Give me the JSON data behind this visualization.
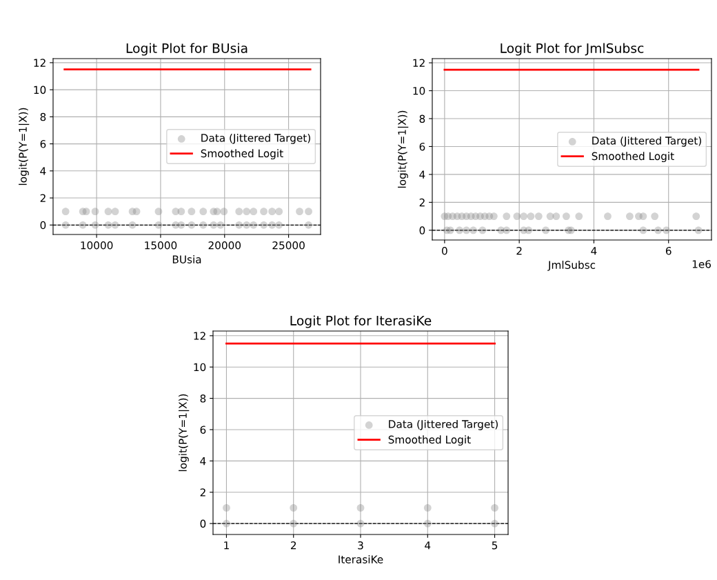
{
  "chart_data": [
    {
      "type": "scatter",
      "title": "Logit Plot for BUsia",
      "xlabel": "BUsia",
      "ylabel": "logit(P(Y=1|X))",
      "xlim": [
        6600,
        27500
      ],
      "xticks": [
        10000,
        15000,
        20000,
        25000
      ],
      "ylim": [
        -0.7,
        12.3
      ],
      "yticks": [
        0,
        2,
        4,
        6,
        8,
        10,
        12
      ],
      "grid": true,
      "legend": "center right",
      "series": [
        {
          "name": "Data (Jittered Target)",
          "marker": "circle",
          "color": "#808080",
          "x": [
            7580,
            8925,
            9190,
            9890,
            10910,
            11450,
            12800,
            13120,
            14840,
            16180,
            16610,
            17420,
            18330,
            19140,
            19410,
            19950,
            21130,
            21720,
            22260,
            23060,
            23710,
            24250,
            25860,
            26560,
            7580,
            8925,
            9890,
            10910,
            11450,
            12800,
            14840,
            16180,
            16610,
            17420,
            18330,
            19140,
            19680,
            21130,
            21720,
            22260,
            23060,
            23710,
            24250,
            26560
          ],
          "values": [
            1,
            1,
            1,
            1,
            1,
            1,
            1,
            1,
            1,
            1,
            1,
            1,
            1,
            1,
            1,
            1,
            1,
            1,
            1,
            1,
            1,
            1,
            1,
            1,
            0,
            0,
            0,
            0,
            0,
            0,
            0,
            0,
            0,
            0,
            0,
            0,
            0,
            0,
            0,
            0,
            0,
            0,
            0,
            0
          ]
        },
        {
          "name": "Smoothed Logit",
          "type": "line",
          "color": "#ff0000",
          "x": [
            7500,
            26700
          ],
          "values": [
            11.5,
            11.5
          ]
        }
      ],
      "ref_lines": [
        {
          "axis": "y",
          "value": 0,
          "color": "#000000",
          "line_style": "dashed"
        }
      ]
    },
    {
      "type": "scatter",
      "title": "Logit Plot for JmlSubsc",
      "xlabel": "JmlSubsc",
      "ylabel": "logit(P(Y=1|X))",
      "xlim": [
        -0.33,
        7.15
      ],
      "xticks": [
        0,
        2,
        4,
        6
      ],
      "ylim": [
        -0.7,
        12.3
      ],
      "yticks": [
        0,
        2,
        4,
        6,
        8,
        10,
        12
      ],
      "grid": true,
      "legend": "center right",
      "annotations": [
        "1e6"
      ],
      "series": [
        {
          "name": "Data (Jittered Target)",
          "marker": "circle",
          "color": "#808080",
          "x": [
            0,
            0.092,
            0.215,
            0.338,
            0.462,
            0.585,
            0.708,
            0.831,
            0.954,
            1.077,
            1.2,
            1.32,
            1.66,
            1.94,
            2.12,
            2.31,
            2.52,
            2.83,
            2.99,
            3.26,
            3.6,
            4.37,
            4.96,
            5.2,
            5.32,
            5.63,
            6.74,
            0.062,
            0.154,
            0.4,
            0.585,
            0.769,
            1.016,
            1.51,
            1.66,
            2.12,
            2.25,
            2.71,
            3.32,
            3.39,
            5.32,
            5.72,
            5.94,
            6.8
          ],
          "values": [
            1,
            1,
            1,
            1,
            1,
            1,
            1,
            1,
            1,
            1,
            1,
            1,
            1,
            1,
            1,
            1,
            1,
            1,
            1,
            1,
            1,
            1,
            1,
            1,
            1,
            1,
            1,
            0,
            0,
            0,
            0,
            0,
            0,
            0,
            0,
            0,
            0,
            0,
            0,
            0,
            0,
            0,
            0,
            0
          ]
        },
        {
          "name": "Smoothed Logit",
          "type": "line",
          "color": "#ff0000",
          "x": [
            0,
            6.8
          ],
          "values": [
            11.5,
            11.5
          ]
        }
      ],
      "ref_lines": [
        {
          "axis": "y",
          "value": 0,
          "color": "#000000",
          "line_style": "dashed"
        }
      ]
    },
    {
      "type": "scatter",
      "title": "Logit Plot for IterasiKe",
      "xlabel": "IterasiKe",
      "ylabel": "logit(P(Y=1|X))",
      "xlim": [
        0.8,
        5.2
      ],
      "xticks": [
        1,
        2,
        3,
        4,
        5
      ],
      "ylim": [
        -0.7,
        12.3
      ],
      "yticks": [
        0,
        2,
        4,
        6,
        8,
        10,
        12
      ],
      "grid": true,
      "legend": "center right",
      "series": [
        {
          "name": "Data (Jittered Target)",
          "marker": "circle",
          "color": "#808080",
          "x": [
            1,
            2,
            3,
            4,
            5,
            1,
            2,
            3,
            4,
            5
          ],
          "values": [
            1,
            1,
            1,
            1,
            1,
            0,
            0,
            0,
            0,
            0
          ]
        },
        {
          "name": "Smoothed Logit",
          "type": "line",
          "color": "#ff0000",
          "x": [
            1,
            5
          ],
          "values": [
            11.5,
            11.5
          ]
        }
      ],
      "ref_lines": [
        {
          "axis": "y",
          "value": 0,
          "color": "#000000",
          "line_style": "dashed"
        }
      ]
    }
  ]
}
